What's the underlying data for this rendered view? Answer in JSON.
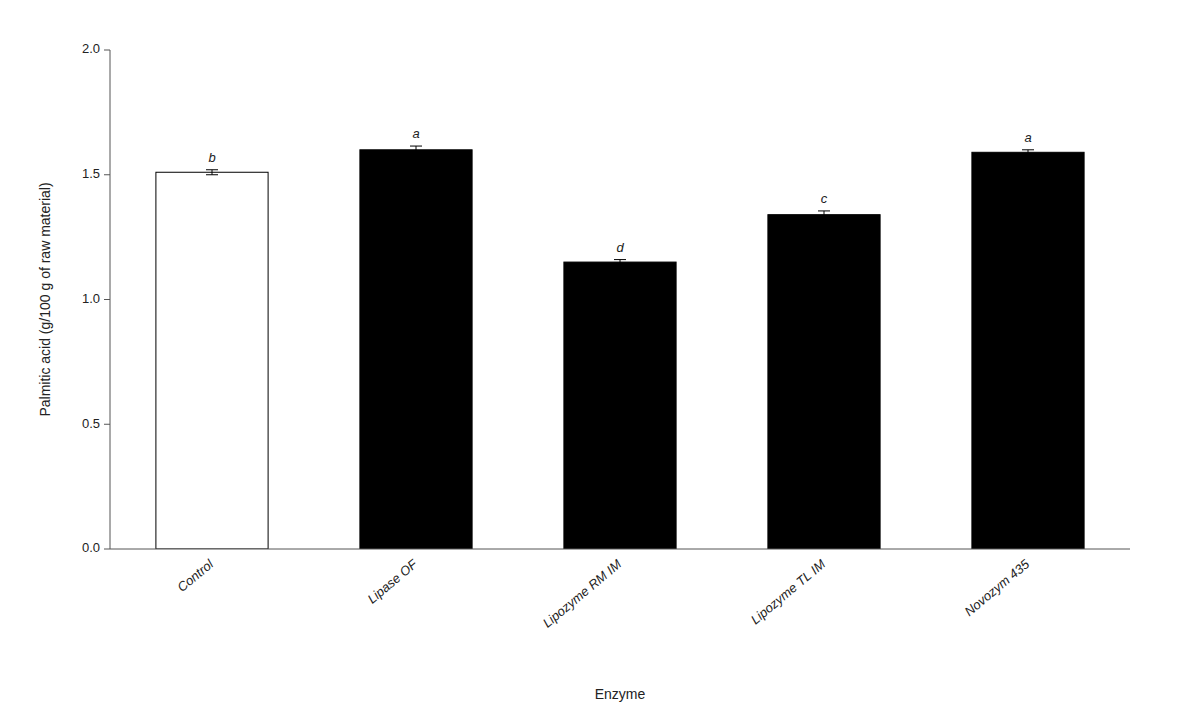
{
  "chart_data": {
    "type": "bar",
    "categories": [
      "Control",
      "Lipase OF",
      "Lipozyme RM IM",
      "Lipozyme TL IM",
      "Novozym 435"
    ],
    "values": [
      1.51,
      1.6,
      1.15,
      1.34,
      1.59
    ],
    "errors": [
      0.01,
      0.015,
      0.01,
      0.015,
      0.01
    ],
    "colors": [
      "white",
      "black",
      "black",
      "black",
      "black"
    ],
    "annotations": [
      "b",
      "a",
      "d",
      "c",
      "a"
    ],
    "ylabel": "Palmitic acid  (g/100 g of raw material)",
    "xlabel": "Enzyme",
    "ylim": [
      0.0,
      2.0
    ],
    "yticks": [
      {
        "value": 0.0,
        "label": "0.0"
      },
      0.5,
      {
        "value": 1.0,
        "label": "1.0"
      },
      1.5,
      {
        "value": 2.0,
        "label": "2.0"
      }
    ],
    "grid": false
  }
}
